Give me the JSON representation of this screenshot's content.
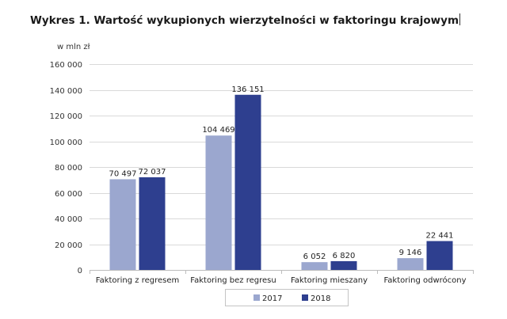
{
  "title": "Wykres 1. Wartość wykupionych wierzytelności w faktoringu krajowym",
  "chart_data": {
    "type": "bar",
    "title": "Wykres 1. Wartość wykupionych wierzytelności w faktoringu krajowym",
    "ylabel": "w mln zł",
    "xlabel": "",
    "ylim": [
      0,
      160000
    ],
    "yticks": [
      0,
      20000,
      40000,
      60000,
      80000,
      100000,
      120000,
      140000,
      160000
    ],
    "ytick_labels": [
      "0",
      "20 000",
      "40 000",
      "60 000",
      "80 000",
      "100 000",
      "120 000",
      "140 000",
      "160 000"
    ],
    "grid": true,
    "legend_position": "bottom",
    "categories": [
      "Faktoring z regresem",
      "Faktoring bez regresu",
      "Faktoring mieszany",
      "Faktoring odwrócony"
    ],
    "series": [
      {
        "name": "2017",
        "color": "#9ba7cf",
        "values": [
          70497,
          104469,
          6052,
          9146
        ],
        "labels": [
          "70 497",
          "104 469",
          "6 052",
          "9 146"
        ]
      },
      {
        "name": "2018",
        "color": "#2e3f8f",
        "values": [
          72037,
          136151,
          6820,
          22441
        ],
        "labels": [
          "72 037",
          "136 151",
          "6 820",
          "22 441"
        ]
      }
    ]
  }
}
